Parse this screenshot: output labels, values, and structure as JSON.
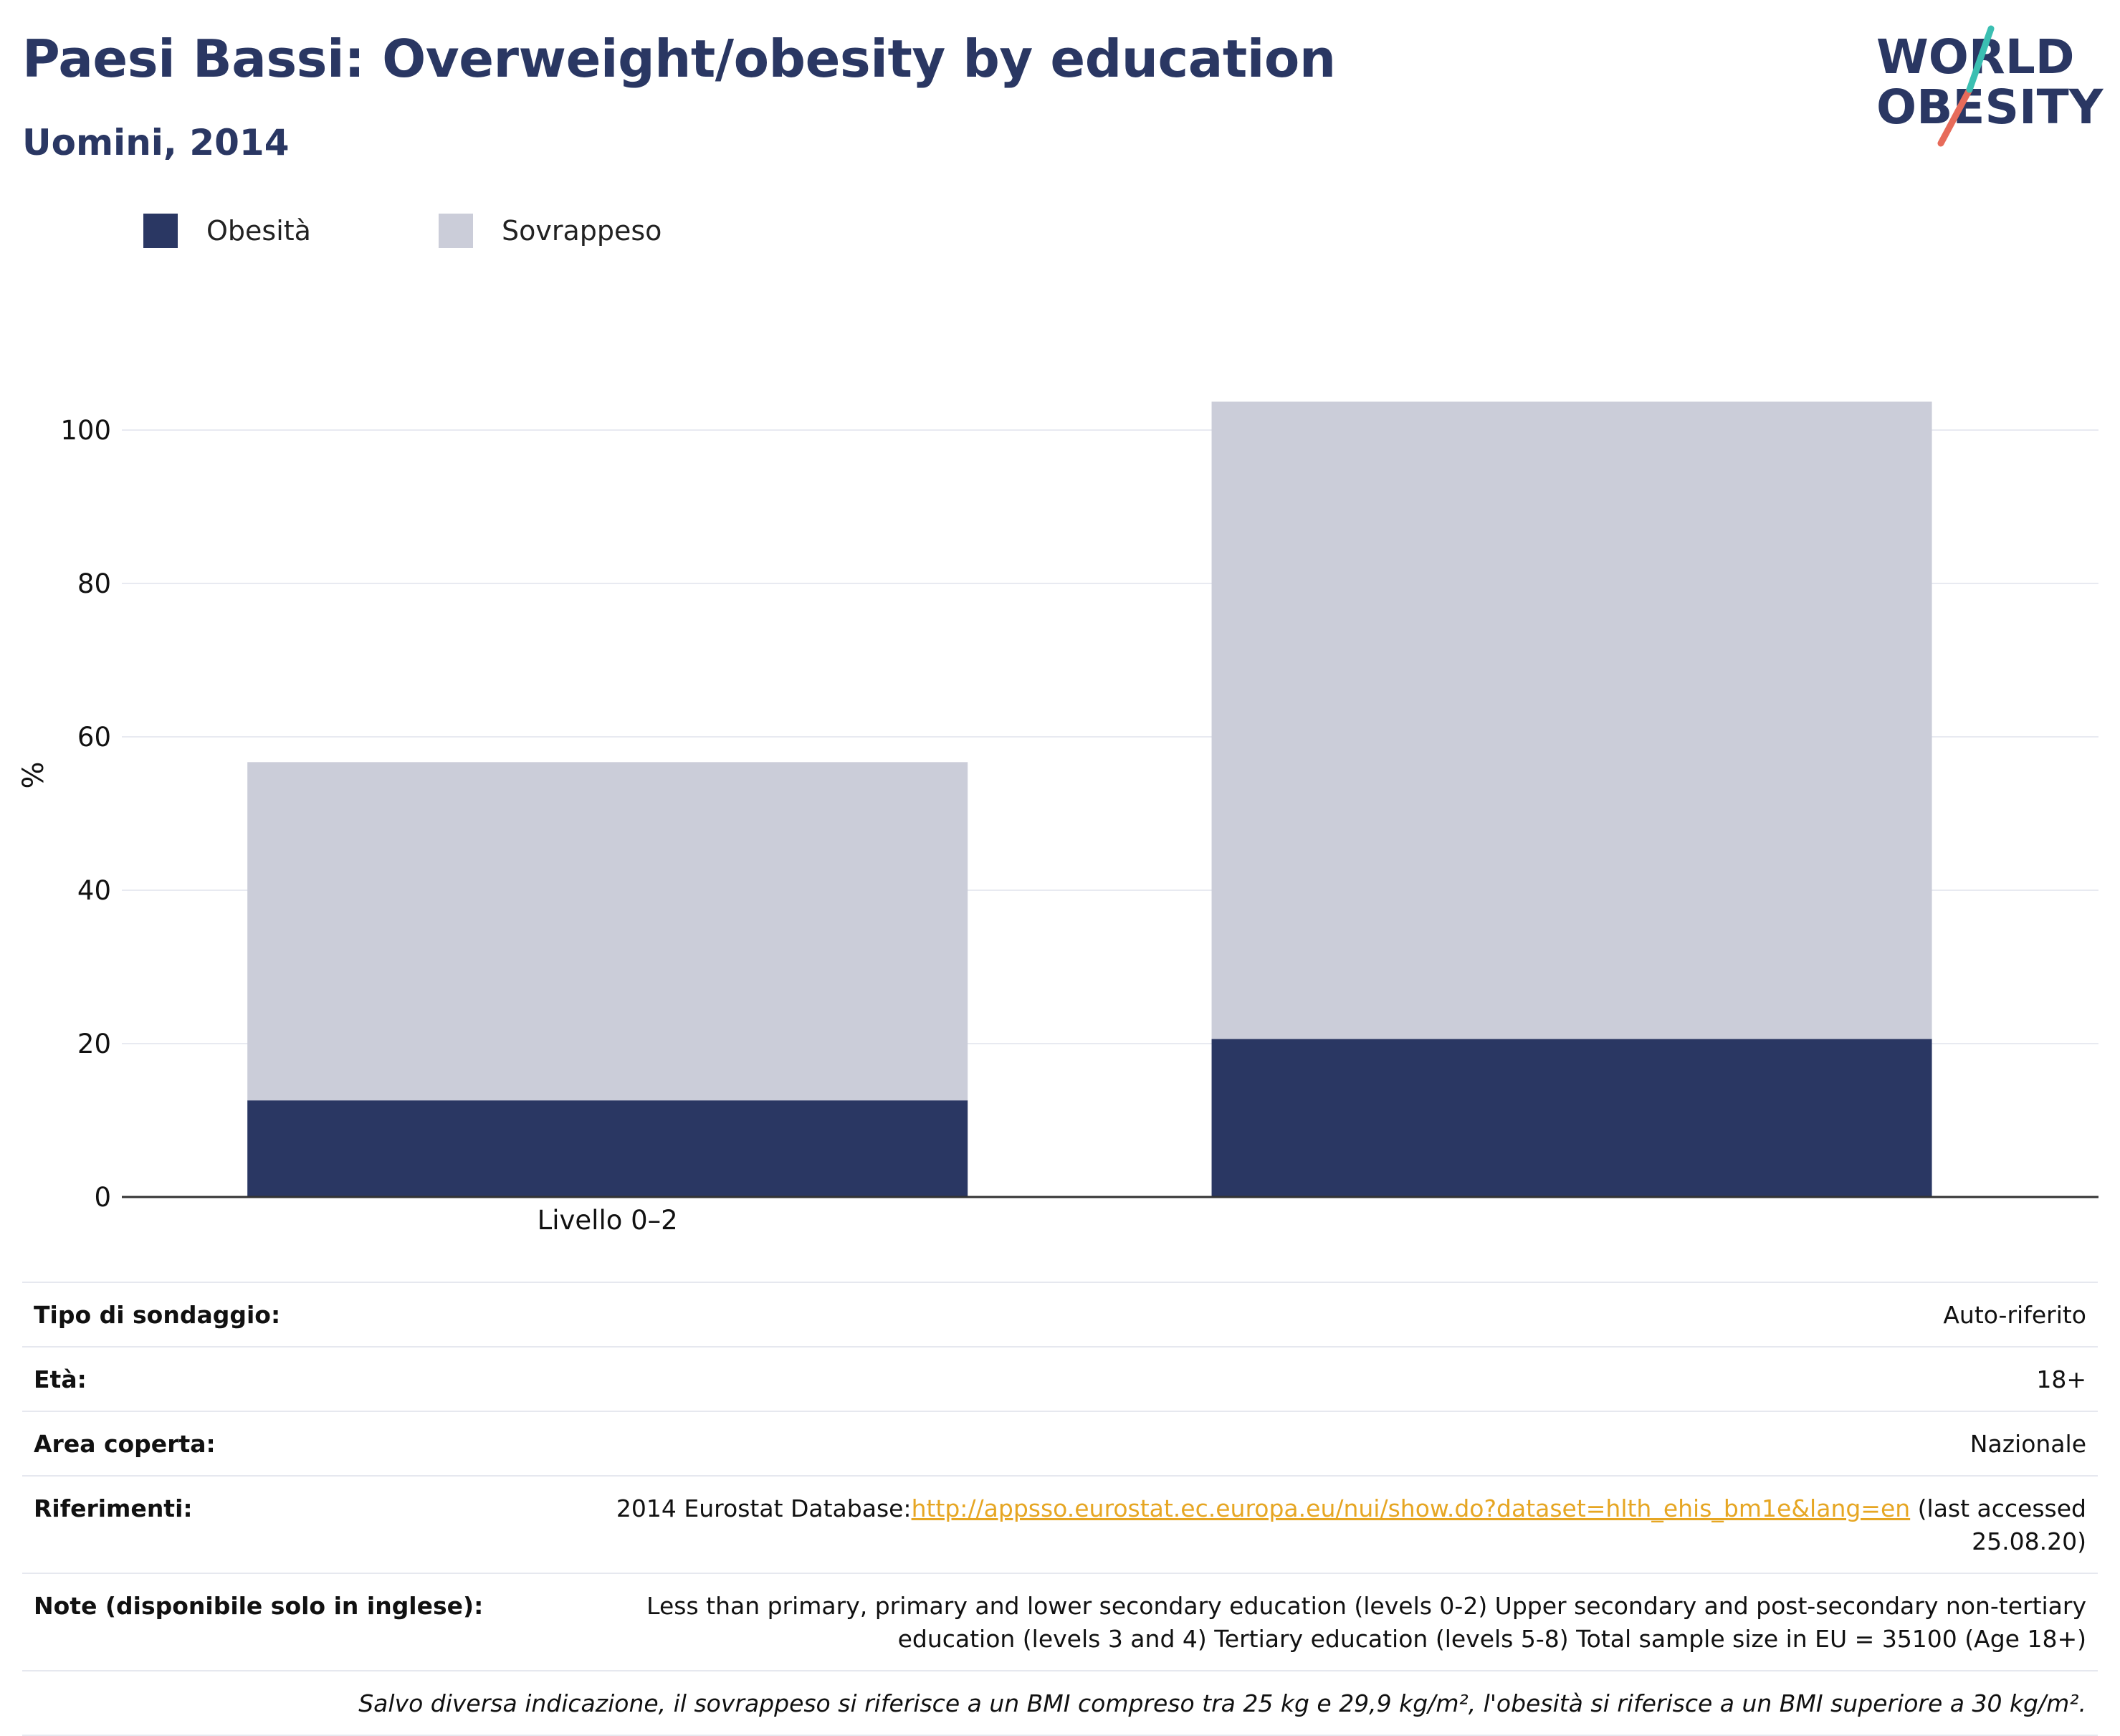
{
  "header": {
    "title": "Paesi Bassi: Overweight/obesity by education",
    "subtitle": "Uomini, 2014"
  },
  "logo": {
    "line1": "WORLD",
    "line2": "OBESITY"
  },
  "legend": [
    {
      "label": "Obesità",
      "color": "#2a3763"
    },
    {
      "label": "Sovrappeso",
      "color": "#cbcdd9"
    }
  ],
  "chart_data": {
    "type": "bar",
    "stacked": true,
    "categories": [
      "Livello 0–2",
      ""
    ],
    "series": [
      {
        "name": "Obesità",
        "color": "#2a3763",
        "values": [
          12.6,
          20.6
        ]
      },
      {
        "name": "Sovrappeso",
        "color": "#cbcdd9",
        "values": [
          44.1,
          83.1
        ]
      }
    ],
    "ylabel": "%",
    "ylim": [
      0,
      110
    ],
    "yticks": [
      0,
      20,
      40,
      60,
      80,
      100
    ],
    "grid": true
  },
  "info": {
    "survey_label": "Tipo di sondaggio:",
    "survey_value": "Auto-riferito",
    "age_label": "Età:",
    "age_value": "18+",
    "area_label": "Area coperta:",
    "area_value": "Nazionale",
    "refs_label": "Riferimenti:",
    "refs_prefix": "2014 Eurostat Database:",
    "refs_link": "http://appsso.eurostat.ec.europa.eu/nui/show.do?dataset=hlth_ehis_bm1e&lang=en",
    "refs_suffix": " (last accessed 25.08.20)",
    "notes_label": "Note (disponibile solo in inglese):",
    "notes_value": "Less than primary, primary and lower secondary education (levels 0-2) Upper secondary and post-secondary non-tertiary education (levels 3 and 4) Tertiary education (levels 5-8) Total sample size in EU = 35100 (Age 18+)",
    "footnote": "Salvo diversa indicazione, il sovrappeso si riferisce a un BMI compreso tra 25 kg e 29,9 kg/m², l'obesità si riferisce a un BMI superiore a 30 kg/m²."
  }
}
